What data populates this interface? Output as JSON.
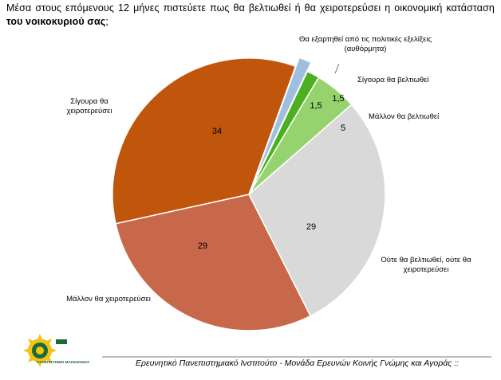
{
  "question": {
    "text_main": "Μέσα στους επόμενους 12 μήνες πιστεύετε πως θα βελτιωθεί ή θα χειροτερεύσει η οικονομική κατάσταση ",
    "text_bold": "του νοικοκυριού σας",
    "text_end": ";"
  },
  "chart_data": {
    "type": "pie",
    "start_angle_deg": 20,
    "direction": "clockwise",
    "slices": [
      {
        "label": "Θα εξαρτηθεί από τις πολιτικές εξελίξεις (αυθόρμητα)",
        "value": 1.5,
        "value_label": "1,5",
        "color": "#9fbfdf",
        "exploded": true
      },
      {
        "label": "Σίγουρα θα βελτιωθεί",
        "value": 1.5,
        "value_label": "1,5",
        "color": "#4caf1e"
      },
      {
        "label": "Μάλλον θα βελτιωθεί",
        "value": 5,
        "value_label": "5",
        "color": "#96d26e"
      },
      {
        "label": "Ούτε θα βελτιωθεί, ούτε θα χειροτερεύσει",
        "value": 29,
        "value_label": "29",
        "color": "#d9d9d9"
      },
      {
        "label": "Μάλλον θα χειροτερεύσει",
        "value": 29,
        "value_label": "29",
        "color": "#c8684a"
      },
      {
        "label": "Σίγουρα θα χειροτερεύσει",
        "value": 34,
        "value_label": "34",
        "color": "#c0560c"
      }
    ]
  },
  "footer": {
    "text": "Ερευνητικό Πανεπιστημιακό Ινστιτούτο - Μονάδα Ερευνών Κοινής Γνώμης και Αγοράς ::",
    "logo_caption": "ΠΑΝΕΠΙΣΤΗΜΙΟ ΜΑΚΕΔΟΝΙΑΣ",
    "logo_tag": "ΕΛΛΗΝΙΚΟ"
  }
}
